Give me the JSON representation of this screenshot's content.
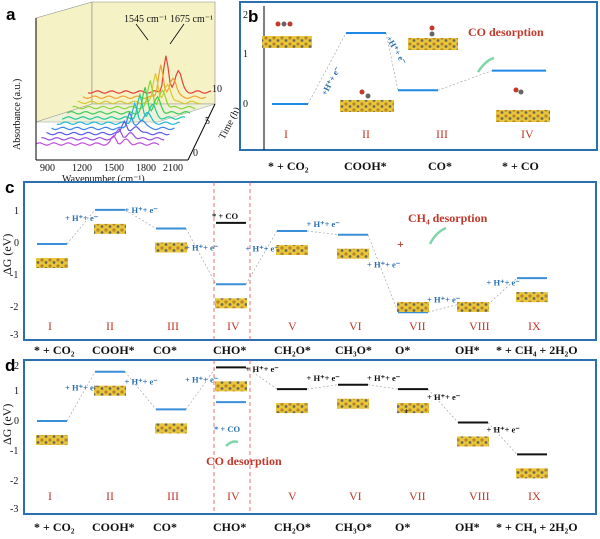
{
  "panel_a": {
    "label": "a",
    "peak1": "1545 cm⁻¹",
    "peak2": "1675 cm⁻¹",
    "ylabel": "Absorbance (a.u.)",
    "xlabel": "Wavenumber (cm⁻¹)",
    "xticks": [
      "900",
      "1200",
      "1500",
      "1800",
      "2100"
    ],
    "zlabel": "Time (h)",
    "zticks": [
      "0",
      "5",
      "10"
    ],
    "series_count": 11,
    "series_colors": [
      "#c04fd8",
      "#9a4fe0",
      "#5a5ae8",
      "#3a86e8",
      "#24b8d8",
      "#22c99a",
      "#3ccc55",
      "#8ed43a",
      "#d6c83a",
      "#f0a034",
      "#e8403a"
    ]
  },
  "panel_b": {
    "label": "b",
    "step1": "+H⁺+ e⁻",
    "step2": "+H⁺+ e⁻",
    "desorption": "CO desorption",
    "roman": [
      "I",
      "II",
      "III",
      "IV"
    ],
    "species": [
      "* + CO₂",
      "COOH*",
      "CO*",
      "* + CO"
    ],
    "ticks": [
      "0",
      "1",
      "2"
    ],
    "energies": [
      0,
      1.45,
      0.28,
      0.68
    ],
    "line_color": "#1e88e5"
  },
  "panel_c": {
    "label": "c",
    "ylabel": "ΔG (eV)",
    "ticks": [
      "1",
      "0",
      "-1",
      "-2",
      "-3"
    ],
    "steps": [
      "+ H⁺+ e⁻",
      "+ H⁺+ e⁻",
      "+ H⁺+ e⁻",
      "+ H⁺+ e⁻",
      "+ H⁺+ e⁻",
      "+ H⁺+ e⁻",
      "+ H⁺+ e⁻",
      "+ H⁺+ e⁻"
    ],
    "co_label": "* + CO",
    "desorption": "CH₄ desorption",
    "roman": [
      "I",
      "II",
      "III",
      "IV",
      "V",
      "VI",
      "VII",
      "VIII",
      "IX"
    ],
    "species": [
      "* + CO₂",
      "COOH*",
      "CO*",
      "CHO*",
      "CH₂O*",
      "CH₃O*",
      "O*",
      "OH*",
      "* + CH₄ + 2H₂O"
    ],
    "energies": [
      0,
      1.1,
      0.5,
      -1.3,
      0.42,
      0.3,
      -2.2,
      -1.95,
      -1.1
    ],
    "co_energy": 0.68
  },
  "panel_d": {
    "label": "d",
    "ylabel": "ΔG (eV)",
    "ticks": [
      "2",
      "1",
      "0",
      "-1",
      "-2",
      "-3"
    ],
    "steps": [
      "+ H⁺+ e⁻",
      "+ H⁺+ e⁻",
      "+ H⁺+ e⁻",
      "+ H⁺+ e⁻",
      "+ H⁺+ e⁻",
      "+ H⁺+ e⁻",
      "+ H⁺+ e⁻",
      "+ H⁺+ e⁻"
    ],
    "co_label": "* + CO",
    "desorption": "CO desorption",
    "roman": [
      "I",
      "II",
      "III",
      "IV",
      "V",
      "VI",
      "VII",
      "VIII",
      "IX"
    ],
    "species": [
      "* + CO₂",
      "COOH*",
      "CO*",
      "CHO*",
      "CH₂O*",
      "CH₃O*",
      "O*",
      "OH*",
      "* + CH₄ + 2H₂O"
    ],
    "energies": [
      0,
      1.7,
      0.4,
      1.85,
      1.1,
      1.25,
      1.1,
      -0.05,
      -1.15
    ],
    "co_energy": 0.65
  }
}
